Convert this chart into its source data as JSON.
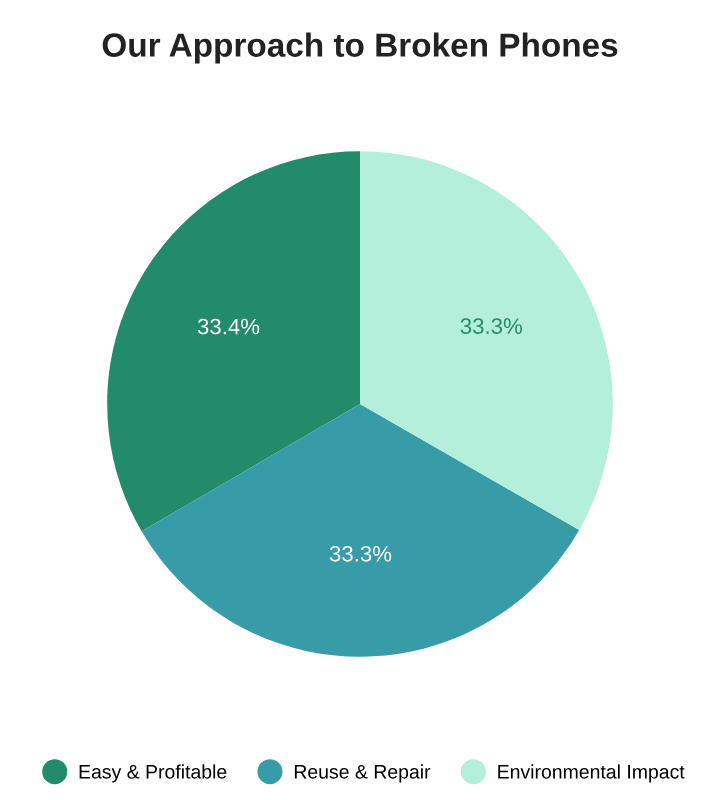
{
  "chart_data": {
    "type": "pie",
    "title": "Our Approach to Broken Phones",
    "categories": [
      "Easy & Profitable",
      "Reuse & Repair",
      "Environmental Impact"
    ],
    "values": [
      33.4,
      33.3,
      33.3
    ],
    "colors": [
      "#228b6a",
      "#389ca8",
      "#b3efdb"
    ],
    "value_labels": [
      "33.4%",
      "33.3%",
      "33.3%"
    ],
    "legend": "bottom"
  }
}
